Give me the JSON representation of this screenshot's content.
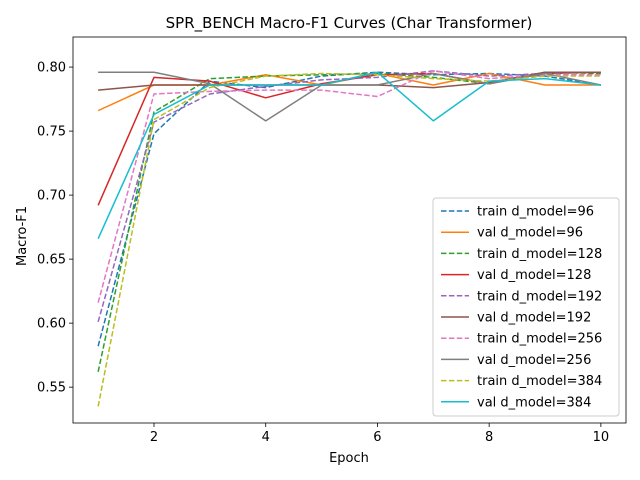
{
  "chart_data": {
    "type": "line",
    "title": "SPR_BENCH Macro-F1 Curves (Char Transformer)",
    "xlabel": "Epoch",
    "ylabel": "Macro-F1",
    "xlim": [
      0.55,
      10.45
    ],
    "ylim": [
      0.522,
      0.8235
    ],
    "x_ticks": [
      2,
      4,
      6,
      8,
      10
    ],
    "y_ticks": [
      0.55,
      0.6,
      0.65,
      0.7,
      0.75,
      0.8
    ],
    "y_tick_labels": [
      "0.55",
      "0.60",
      "0.65",
      "0.70",
      "0.75",
      "0.80"
    ],
    "grid": false,
    "legend_position": "lower-right",
    "x": [
      1,
      2,
      3,
      4,
      5,
      6,
      7,
      8,
      9,
      10
    ],
    "series": [
      {
        "name": "train d_model=96",
        "color": "#1f77b4",
        "dash": true,
        "values": [
          0.582,
          0.748,
          0.789,
          0.784,
          0.793,
          0.796,
          0.794,
          0.795,
          0.793,
          0.786
        ]
      },
      {
        "name": "val d_model=96",
        "color": "#ff7f0e",
        "dash": false,
        "values": [
          0.766,
          0.786,
          0.786,
          0.794,
          0.786,
          0.795,
          0.786,
          0.795,
          0.786,
          0.786
        ]
      },
      {
        "name": "train d_model=128",
        "color": "#2ca02c",
        "dash": true,
        "values": [
          0.562,
          0.765,
          0.791,
          0.793,
          0.794,
          0.795,
          0.792,
          0.787,
          0.796,
          0.795
        ]
      },
      {
        "name": "val d_model=128",
        "color": "#d62728",
        "dash": false,
        "values": [
          0.692,
          0.792,
          0.789,
          0.776,
          0.787,
          0.794,
          0.795,
          0.787,
          0.795,
          0.796
        ]
      },
      {
        "name": "train d_model=192",
        "color": "#9467bd",
        "dash": true,
        "values": [
          0.601,
          0.757,
          0.779,
          0.785,
          0.79,
          0.792,
          0.797,
          0.793,
          0.795,
          0.796
        ]
      },
      {
        "name": "val d_model=192",
        "color": "#8c564b",
        "dash": false,
        "values": [
          0.782,
          0.786,
          0.786,
          0.786,
          0.786,
          0.786,
          0.784,
          0.788,
          0.796,
          0.796
        ]
      },
      {
        "name": "train d_model=256",
        "color": "#e377c2",
        "dash": true,
        "values": [
          0.616,
          0.779,
          0.781,
          0.782,
          0.782,
          0.777,
          0.797,
          0.791,
          0.794,
          0.794
        ]
      },
      {
        "name": "val d_model=256",
        "color": "#7f7f7f",
        "dash": false,
        "values": [
          0.796,
          0.796,
          0.787,
          0.758,
          0.786,
          0.786,
          0.795,
          0.787,
          0.795,
          0.786
        ]
      },
      {
        "name": "train d_model=384",
        "color": "#bcbd22",
        "dash": true,
        "values": [
          0.535,
          0.759,
          0.784,
          0.793,
          0.795,
          0.794,
          0.791,
          0.789,
          0.793,
          0.793
        ]
      },
      {
        "name": "val d_model=384",
        "color": "#17becf",
        "dash": false,
        "values": [
          0.666,
          0.763,
          0.786,
          0.786,
          0.786,
          0.796,
          0.758,
          0.789,
          0.791,
          0.786
        ]
      }
    ]
  }
}
